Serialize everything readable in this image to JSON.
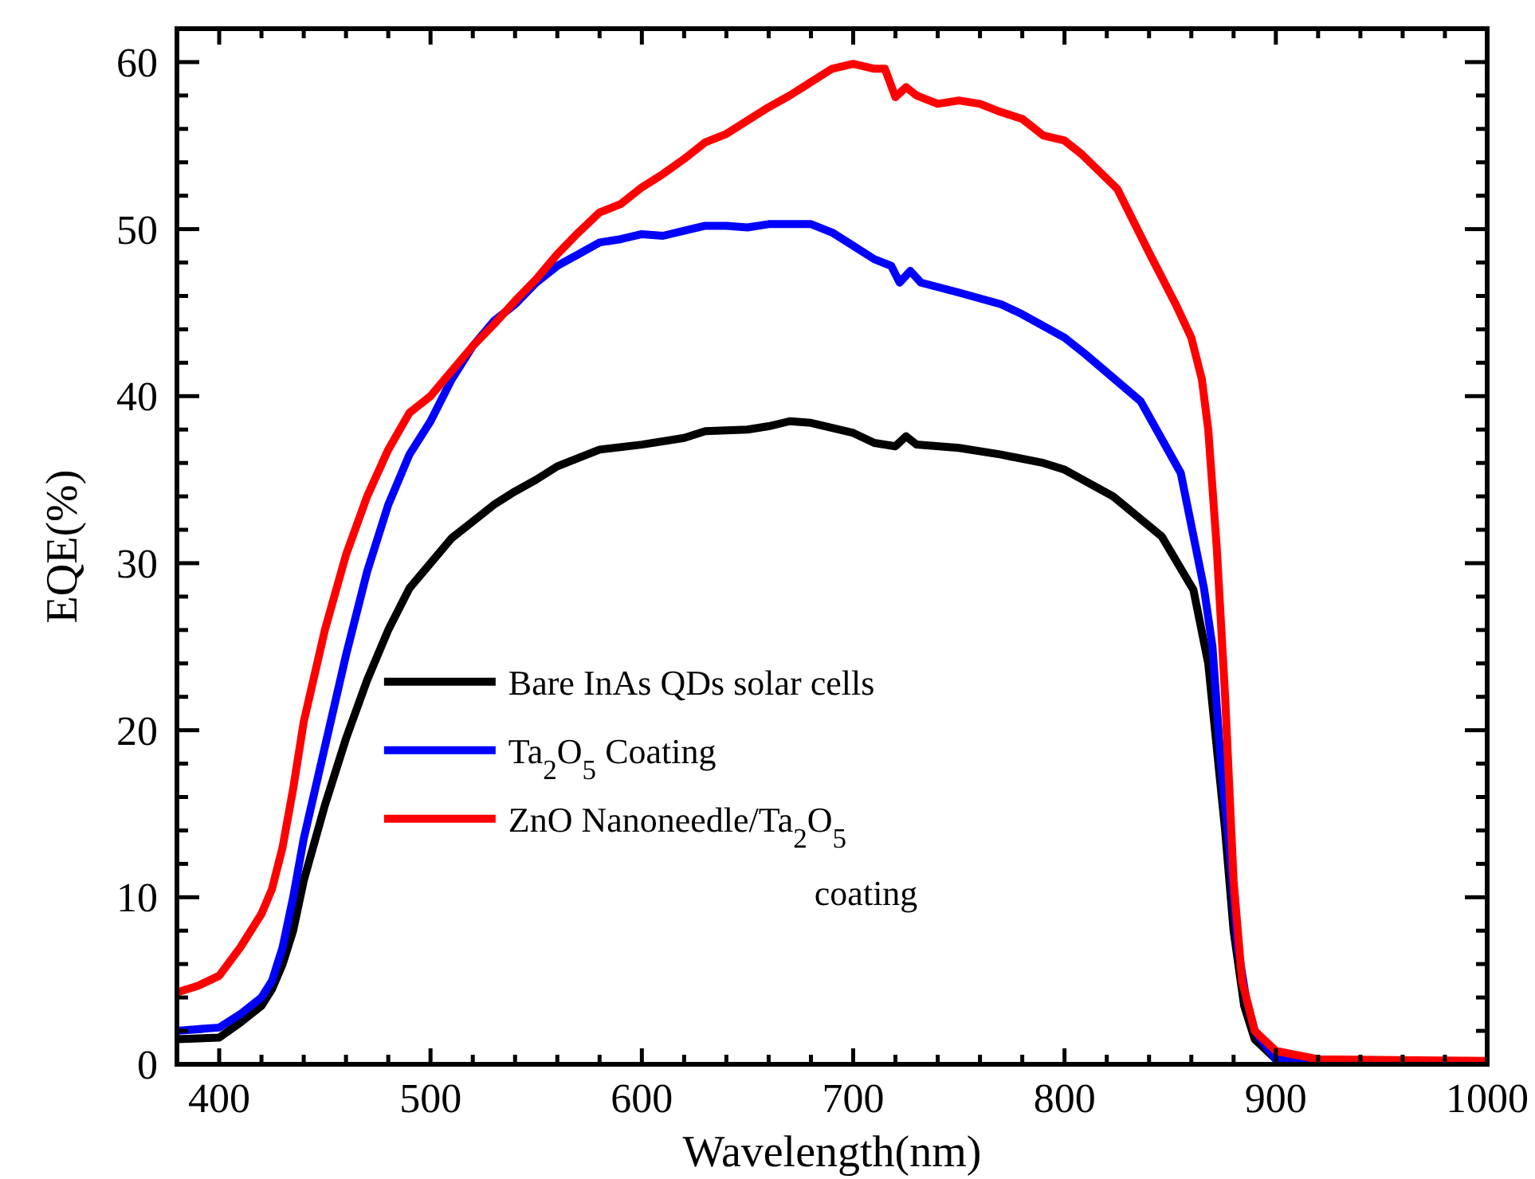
{
  "chart_data": {
    "type": "line",
    "xlabel": "Wavelength(nm)",
    "ylabel": "EQE(%)",
    "xlim": [
      380,
      1000
    ],
    "ylim": [
      0,
      62
    ],
    "xticks": [
      400,
      {
        "value": 420,
        "label": null
      },
      {
        "value": 440,
        "label": null
      },
      {
        "value": 460,
        "label": null
      },
      {
        "value": 480,
        "label": null
      },
      500,
      {
        "value": 520,
        "label": null
      },
      {
        "value": 540,
        "label": null
      },
      {
        "value": 560,
        "label": null
      },
      {
        "value": 580,
        "label": null
      },
      600,
      {
        "value": 620,
        "label": null
      },
      {
        "value": 640,
        "label": null
      },
      {
        "value": 660,
        "label": null
      },
      {
        "value": 680,
        "label": null
      },
      700,
      {
        "value": 720,
        "label": null
      },
      {
        "value": 740,
        "label": null
      },
      {
        "value": 760,
        "label": null
      },
      {
        "value": 780,
        "label": null
      },
      800,
      {
        "value": 820,
        "label": null
      },
      {
        "value": 840,
        "label": null
      },
      {
        "value": 860,
        "label": null
      },
      {
        "value": 880,
        "label": null
      },
      900,
      {
        "value": 920,
        "label": null
      },
      {
        "value": 940,
        "label": null
      },
      {
        "value": 960,
        "label": null
      },
      {
        "value": 980,
        "label": null
      },
      1000
    ],
    "yticks": [
      0,
      {
        "value": 2,
        "label": null
      },
      {
        "value": 4,
        "label": null
      },
      {
        "value": 6,
        "label": null
      },
      {
        "value": 8,
        "label": null
      },
      10,
      {
        "value": 12,
        "label": null
      },
      {
        "value": 14,
        "label": null
      },
      {
        "value": 16,
        "label": null
      },
      {
        "value": 18,
        "label": null
      },
      20,
      {
        "value": 22,
        "label": null
      },
      {
        "value": 24,
        "label": null
      },
      {
        "value": 26,
        "label": null
      },
      {
        "value": 28,
        "label": null
      },
      30,
      {
        "value": 32,
        "label": null
      },
      {
        "value": 34,
        "label": null
      },
      {
        "value": 36,
        "label": null
      },
      {
        "value": 38,
        "label": null
      },
      40,
      {
        "value": 42,
        "label": null
      },
      {
        "value": 44,
        "label": null
      },
      {
        "value": 46,
        "label": null
      },
      {
        "value": 48,
        "label": null
      },
      50,
      {
        "value": 52,
        "label": null
      },
      {
        "value": 54,
        "label": null
      },
      {
        "value": 56,
        "label": null
      },
      {
        "value": 58,
        "label": null
      },
      60
    ],
    "grid": false,
    "legend": "left",
    "marker": "none",
    "line_style": "solid",
    "series": [
      {
        "name": "Bare InAs QDs solar cells",
        "color": "#000000",
        "x": [
          380,
          400,
          410,
          420,
          425,
          430,
          435,
          440,
          450,
          460,
          470,
          480,
          490,
          500,
          510,
          520,
          530,
          540,
          550,
          560,
          570,
          580,
          600,
          620,
          630,
          650,
          660,
          670,
          680,
          690,
          700,
          710,
          720,
          725,
          730,
          750,
          770,
          790,
          800,
          823,
          846,
          861,
          868,
          872,
          876,
          880,
          885,
          890,
          900,
          920,
          1000
        ],
        "values": [
          1.5,
          1.6,
          2.5,
          3.5,
          4.5,
          6,
          8,
          11,
          15.5,
          19.5,
          23,
          26,
          28.5,
          30,
          31.5,
          32.5,
          33.5,
          34.3,
          35,
          35.8,
          36.3,
          36.8,
          37.1,
          37.5,
          37.9,
          38,
          38.2,
          38.5,
          38.4,
          38.1,
          37.8,
          37.2,
          37,
          37.6,
          37.1,
          36.9,
          36.5,
          36,
          35.6,
          34,
          31.6,
          28.4,
          24,
          19,
          14,
          8,
          3.5,
          1.5,
          0.3,
          0.2,
          0.1
        ]
      },
      {
        "name": "Ta$_{2}$O$_{5}$ Coating",
        "color": "#0000ff",
        "x": [
          380,
          400,
          410,
          420,
          425,
          430,
          435,
          440,
          450,
          460,
          470,
          480,
          490,
          500,
          510,
          520,
          530,
          540,
          550,
          560,
          570,
          580,
          590,
          600,
          610,
          620,
          630,
          640,
          650,
          660,
          670,
          680,
          690,
          700,
          710,
          718,
          722,
          727,
          732,
          750,
          770,
          780,
          800,
          810,
          836,
          855,
          866,
          870,
          874,
          878,
          882,
          886,
          890,
          900,
          920
        ],
        "values": [
          2,
          2.2,
          3,
          4,
          5,
          7,
          10,
          13.5,
          19,
          24.5,
          29.5,
          33.5,
          36.5,
          38.5,
          41,
          43,
          44.5,
          45.5,
          46.8,
          47.8,
          48.5,
          49.2,
          49.4,
          49.7,
          49.6,
          49.9,
          50.2,
          50.2,
          50.1,
          50.3,
          50.3,
          50.3,
          49.8,
          49,
          48.2,
          47.8,
          46.8,
          47.5,
          46.8,
          46.2,
          45.5,
          44.9,
          43.5,
          42.5,
          39.7,
          35.4,
          28.5,
          25,
          18,
          13,
          7,
          3.9,
          2,
          0.3,
          0.1
        ]
      },
      {
        "name": "ZnO Nanoneedle/Ta$_{2}$O$_{5}$\ncoating",
        "color": "#ff0000",
        "x": [
          380,
          390,
          400,
          410,
          420,
          425,
          430,
          435,
          440,
          450,
          460,
          470,
          480,
          490,
          500,
          510,
          520,
          530,
          540,
          550,
          560,
          570,
          580,
          590,
          600,
          610,
          620,
          630,
          640,
          650,
          660,
          670,
          680,
          690,
          700,
          710,
          715,
          720,
          725,
          730,
          740,
          750,
          760,
          770,
          780,
          790,
          800,
          808,
          825,
          840,
          853,
          860,
          865,
          868,
          872,
          876,
          880,
          884,
          890,
          900,
          920,
          1000
        ],
        "values": [
          4.3,
          4.7,
          5.3,
          7,
          9,
          10.5,
          13,
          16.5,
          20.5,
          26,
          30.5,
          34,
          36.8,
          39,
          40,
          41.5,
          43,
          44.3,
          45.7,
          47,
          48.5,
          49.8,
          51,
          51.5,
          52.5,
          53.3,
          54.2,
          55.2,
          55.7,
          56.5,
          57.3,
          58,
          58.8,
          59.6,
          59.9,
          59.6,
          59.6,
          57.9,
          58.5,
          58,
          57.5,
          57.7,
          57.5,
          57,
          56.6,
          55.6,
          55.3,
          54.5,
          52.4,
          48.6,
          45.4,
          43.5,
          41,
          38,
          31,
          22,
          11,
          5,
          2,
          0.8,
          0.3,
          0.2
        ]
      }
    ]
  }
}
